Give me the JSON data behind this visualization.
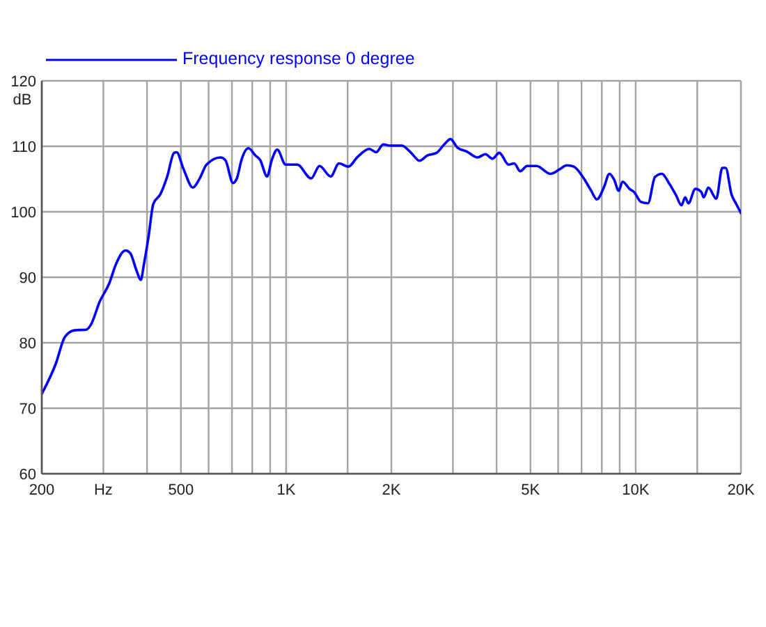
{
  "chart_data": {
    "type": "line",
    "ylabel": "dB",
    "x": [
      200,
      219,
      233,
      248,
      268,
      276,
      293,
      312,
      326,
      347,
      358,
      374,
      384,
      392,
      404,
      417,
      437,
      457,
      478,
      486,
      509,
      541,
      566,
      592,
      649,
      670,
      705,
      723,
      745,
      780,
      817,
      843,
      882,
      910,
      943,
      997,
      1076,
      1179,
      1246,
      1341,
      1417,
      1507,
      1602,
      1730,
      1810,
      1896,
      1984,
      2142,
      2278,
      2407,
      2537,
      2694,
      2846,
      2952,
      3091,
      3288,
      3529,
      3715,
      3890,
      4072,
      4330,
      4492,
      4673,
      4892,
      5204,
      5704,
      6064,
      6351,
      6650,
      7064,
      7444,
      7742,
      8106,
      8410,
      8677,
      8944,
      9169,
      9600,
      9895,
      10359,
      10845,
      11351,
      11886,
      12442,
      13026,
      13516,
      13854,
      14150,
      14814,
      15412,
      15654,
      16134,
      17004,
      17686,
      18082,
      18808,
      19388,
      20000
    ],
    "series": [
      {
        "name": "Frequency response 0 degree",
        "color": "#0000ff",
        "values": [
          72.2,
          76.7,
          80.9,
          81.9,
          82.0,
          82.7,
          86.3,
          89.1,
          92.0,
          94.1,
          93.7,
          90.9,
          89.6,
          92.0,
          96.2,
          101.2,
          102.7,
          105.4,
          109.0,
          109.1,
          106.5,
          103.7,
          105.1,
          107.2,
          108.3,
          107.9,
          104.4,
          105.1,
          107.9,
          109.7,
          108.6,
          107.9,
          105.4,
          107.9,
          109.5,
          107.2,
          107.2,
          105.1,
          107.0,
          105.4,
          107.4,
          106.9,
          108.4,
          109.6,
          109.1,
          110.3,
          110.1,
          110.1,
          109.0,
          107.8,
          108.6,
          109.0,
          110.4,
          111.1,
          109.8,
          109.2,
          108.3,
          108.8,
          108.1,
          109.0,
          107.2,
          107.4,
          106.2,
          107.0,
          107.0,
          105.8,
          106.5,
          107.1,
          106.9,
          105.3,
          103.3,
          101.9,
          103.7,
          105.8,
          104.9,
          103.2,
          104.6,
          103.5,
          103.0,
          101.5,
          101.3,
          105.3,
          105.8,
          104.4,
          102.6,
          101.0,
          102.2,
          101.3,
          103.5,
          103.0,
          102.2,
          103.7,
          102.0,
          106.7,
          106.7,
          102.6,
          101.2,
          99.8
        ]
      }
    ],
    "xlim": [
      200,
      20000
    ],
    "ylim": [
      60,
      120
    ],
    "xticks": [
      200,
      {
        "value": 300,
        "label": "Hz"
      },
      {
        "value": 400,
        "label": null
      },
      500,
      {
        "value": 600,
        "label": null
      },
      {
        "value": 700,
        "label": null
      },
      {
        "value": 800,
        "label": null
      },
      {
        "value": 900,
        "label": null
      },
      {
        "value": 1000,
        "label": "1K"
      },
      {
        "value": 1500,
        "label": null
      },
      {
        "value": 2000,
        "label": "2K"
      },
      {
        "value": 3000,
        "label": null
      },
      {
        "value": 4000,
        "label": null
      },
      {
        "value": 5000,
        "label": "5K"
      },
      {
        "value": 6000,
        "label": null
      },
      {
        "value": 7000,
        "label": null
      },
      {
        "value": 8000,
        "label": null
      },
      {
        "value": 9000,
        "label": null
      },
      {
        "value": 10000,
        "label": "10K"
      },
      {
        "value": 15000,
        "label": null
      },
      {
        "value": 20000,
        "label": "20K"
      }
    ],
    "yticks": [
      60,
      70,
      80,
      90,
      100,
      110,
      120
    ],
    "log": "x",
    "grid": true,
    "legend": "top left",
    "line_style": "solid"
  }
}
